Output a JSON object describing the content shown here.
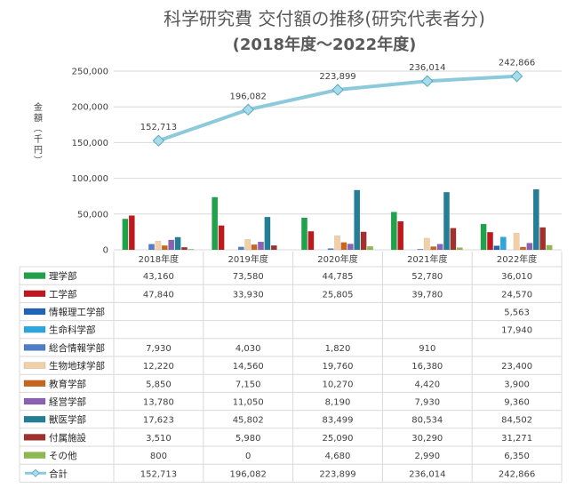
{
  "chart_data": {
    "type": "bar",
    "title": "科学研究費 交付額の推移(研究代表者分)",
    "subtitle": "(2018年度～2022年度)",
    "ylabel": "金額（千円）",
    "ylim": [
      0,
      250000
    ],
    "ytick_step": 50000,
    "ytick_labels": [
      "0",
      "50,000",
      "100,000",
      "150,000",
      "200,000",
      "250,000"
    ],
    "categories": [
      "2018年度",
      "2019年度",
      "2020年度",
      "2021年度",
      "2022年度"
    ],
    "series": [
      {
        "name": "理学部",
        "color": "#1fa34a",
        "values": [
          43160,
          73580,
          44785,
          52780,
          36010
        ],
        "labels": [
          "43,160",
          "73,580",
          "44,785",
          "52,780",
          "36,010"
        ]
      },
      {
        "name": "工学部",
        "color": "#c0181f",
        "values": [
          47840,
          33930,
          25805,
          39780,
          24570
        ],
        "labels": [
          "47,840",
          "33,930",
          "25,805",
          "39,780",
          "24,570"
        ]
      },
      {
        "name": "情報理工学部",
        "color": "#1f64b8",
        "values": [
          null,
          null,
          null,
          null,
          5563
        ],
        "labels": [
          "",
          "",
          "",
          "",
          "5,563"
        ]
      },
      {
        "name": "生命科学部",
        "color": "#2aa7e0",
        "values": [
          null,
          null,
          null,
          null,
          17940
        ],
        "labels": [
          "",
          "",
          "",
          "",
          "17,940"
        ]
      },
      {
        "name": "総合情報学部",
        "color": "#4d7ec7",
        "values": [
          7930,
          4030,
          1820,
          910,
          null
        ],
        "labels": [
          "7,930",
          "4,030",
          "1,820",
          "910",
          ""
        ]
      },
      {
        "name": "生物地球学部",
        "color": "#f2cfa6",
        "values": [
          12220,
          14560,
          19760,
          16380,
          23400
        ],
        "labels": [
          "12,220",
          "14,560",
          "19,760",
          "16,380",
          "23,400"
        ]
      },
      {
        "name": "教育学部",
        "color": "#c8651e",
        "values": [
          5850,
          7150,
          10270,
          4420,
          3900
        ],
        "labels": [
          "5,850",
          "7,150",
          "10,270",
          "4,420",
          "3,900"
        ]
      },
      {
        "name": "経営学部",
        "color": "#8a62b3",
        "values": [
          13780,
          11050,
          8190,
          7930,
          9360
        ],
        "labels": [
          "13,780",
          "11,050",
          "8,190",
          "7,930",
          "9,360"
        ]
      },
      {
        "name": "獣医学部",
        "color": "#237f96",
        "values": [
          17623,
          45802,
          83499,
          80534,
          84502
        ],
        "labels": [
          "17,623",
          "45,802",
          "83,499",
          "80,534",
          "84,502"
        ]
      },
      {
        "name": "付属施設",
        "color": "#a2302d",
        "values": [
          3510,
          5980,
          25090,
          30290,
          31271
        ],
        "labels": [
          "3,510",
          "5,980",
          "25,090",
          "30,290",
          "31,271"
        ]
      },
      {
        "name": "その他",
        "color": "#8cba4c",
        "values": [
          800,
          0,
          4680,
          2990,
          6350
        ],
        "labels": [
          "800",
          "0",
          "4,680",
          "2,990",
          "6,350"
        ]
      }
    ],
    "total": {
      "name": "合計",
      "color": "#8ccadb",
      "values": [
        152713,
        196082,
        223899,
        236014,
        242866
      ],
      "labels": [
        "152,713",
        "196,082",
        "223,899",
        "236,014",
        "242,866"
      ]
    },
    "grid": true,
    "legend": "data-table"
  }
}
